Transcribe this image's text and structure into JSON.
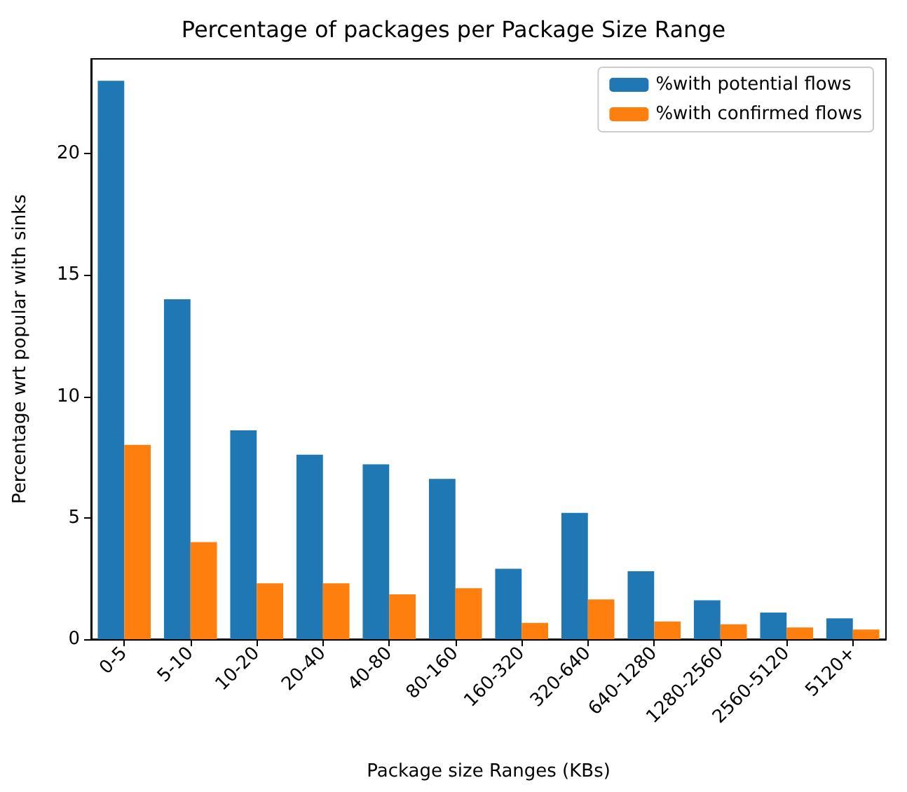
{
  "chart_data": {
    "type": "bar",
    "title": "Percentage of packages per Package Size Range",
    "xlabel": "Package size Ranges (KBs)",
    "ylabel": "Percentage wrt popular with sinks",
    "categories": [
      "0-5",
      "5-10",
      "10-20",
      "20-40",
      "40-80",
      "80-160",
      "160-320",
      "320-640",
      "640-1280",
      "1280-2560",
      "2560-5120",
      "5120+"
    ],
    "series": [
      {
        "name": "%with potential flows",
        "color": "#1f77b4",
        "values": [
          23.0,
          14.0,
          8.6,
          7.6,
          7.2,
          6.6,
          2.9,
          5.2,
          2.8,
          1.6,
          1.1,
          0.86
        ]
      },
      {
        "name": "%with confirmed flows",
        "color": "#ff7f0e",
        "values": [
          8.0,
          4.0,
          2.3,
          2.3,
          1.85,
          2.1,
          0.67,
          1.64,
          0.73,
          0.61,
          0.48,
          0.4
        ]
      }
    ],
    "ylim": [
      0,
      23.9
    ],
    "yticks": [
      0,
      5,
      10,
      15,
      20
    ],
    "grid": false,
    "legend": "top right"
  }
}
